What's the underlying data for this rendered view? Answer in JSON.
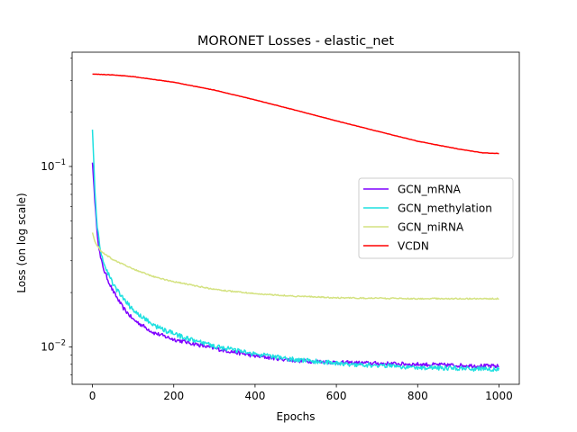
{
  "chart_data": {
    "type": "line",
    "title": "MORONET Losses - elastic_net",
    "xlabel": "Epochs",
    "ylabel": "Loss (on log scale)",
    "yscale": "log",
    "xlim": [
      -50,
      1050
    ],
    "ylim": [
      0.0062,
      0.43
    ],
    "x_ticks": [
      0,
      200,
      400,
      600,
      800,
      1000
    ],
    "y_major_ticks": [
      0.01,
      0.1
    ],
    "y_major_tick_labels": [
      "10^-2",
      "10^-1"
    ],
    "y_minor_ticks": [
      0.007,
      0.008,
      0.009,
      0.02,
      0.03,
      0.04,
      0.05,
      0.06,
      0.07,
      0.08,
      0.09,
      0.2,
      0.3,
      0.4
    ],
    "grid": false,
    "legend_position": "center-right",
    "series": [
      {
        "name": "GCN_mRNA",
        "color": "#7f00ff",
        "noise": 0.025,
        "points": [
          [
            0,
            0.105
          ],
          [
            5,
            0.07
          ],
          [
            10,
            0.047
          ],
          [
            15,
            0.037
          ],
          [
            20,
            0.031
          ],
          [
            30,
            0.026
          ],
          [
            40,
            0.023
          ],
          [
            50,
            0.0205
          ],
          [
            75,
            0.0165
          ],
          [
            100,
            0.0142
          ],
          [
            150,
            0.012
          ],
          [
            200,
            0.011
          ],
          [
            250,
            0.0104
          ],
          [
            300,
            0.0098
          ],
          [
            400,
            0.0089
          ],
          [
            500,
            0.0084
          ],
          [
            600,
            0.0082
          ],
          [
            700,
            0.0081
          ],
          [
            800,
            0.008
          ],
          [
            900,
            0.0079
          ],
          [
            1000,
            0.0078
          ]
        ]
      },
      {
        "name": "GCN_methylation",
        "color": "#1ee0e0",
        "noise": 0.03,
        "points": [
          [
            0,
            0.16
          ],
          [
            3,
            0.11
          ],
          [
            6,
            0.075
          ],
          [
            10,
            0.052
          ],
          [
            15,
            0.04
          ],
          [
            20,
            0.034
          ],
          [
            30,
            0.028
          ],
          [
            40,
            0.025
          ],
          [
            50,
            0.0225
          ],
          [
            75,
            0.0185
          ],
          [
            100,
            0.016
          ],
          [
            150,
            0.0132
          ],
          [
            200,
            0.0118
          ],
          [
            250,
            0.0108
          ],
          [
            300,
            0.0101
          ],
          [
            400,
            0.0091
          ],
          [
            500,
            0.0085
          ],
          [
            600,
            0.0081
          ],
          [
            700,
            0.0079
          ],
          [
            800,
            0.0077
          ],
          [
            900,
            0.0076
          ],
          [
            1000,
            0.0075
          ]
        ]
      },
      {
        "name": "GCN_miRNA",
        "color": "#d4e281",
        "noise": 0.008,
        "points": [
          [
            0,
            0.043
          ],
          [
            5,
            0.039
          ],
          [
            10,
            0.037
          ],
          [
            20,
            0.034
          ],
          [
            50,
            0.0305
          ],
          [
            100,
            0.027
          ],
          [
            150,
            0.0245
          ],
          [
            200,
            0.023
          ],
          [
            300,
            0.0208
          ],
          [
            400,
            0.0197
          ],
          [
            500,
            0.0191
          ],
          [
            600,
            0.0187
          ],
          [
            700,
            0.0186
          ],
          [
            800,
            0.0185
          ],
          [
            900,
            0.0185
          ],
          [
            1000,
            0.0185
          ]
        ]
      },
      {
        "name": "VCDN",
        "color": "#ff0000",
        "noise": 0.002,
        "points": [
          [
            0,
            0.325
          ],
          [
            50,
            0.322
          ],
          [
            100,
            0.315
          ],
          [
            200,
            0.293
          ],
          [
            300,
            0.265
          ],
          [
            400,
            0.234
          ],
          [
            500,
            0.205
          ],
          [
            600,
            0.179
          ],
          [
            700,
            0.157
          ],
          [
            800,
            0.138
          ],
          [
            900,
            0.125
          ],
          [
            960,
            0.119
          ],
          [
            1000,
            0.118
          ]
        ]
      }
    ]
  }
}
